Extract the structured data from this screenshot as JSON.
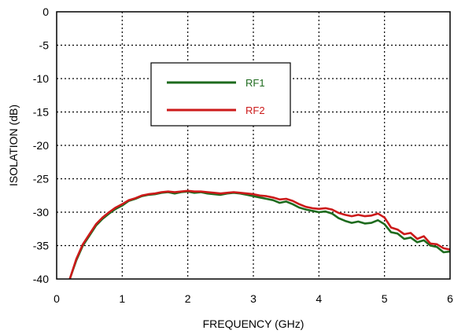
{
  "chart_data": {
    "type": "line",
    "title": "",
    "xlabel": "FREQUENCY (GHz)",
    "ylabel": "ISOLATION (dB)",
    "xlim": [
      0,
      6
    ],
    "ylim": [
      -40,
      0
    ],
    "x_ticks": [
      "0",
      "1",
      "2",
      "3",
      "4",
      "5",
      "6"
    ],
    "y_ticks": [
      "0",
      "-5",
      "-10",
      "-15",
      "-20",
      "-25",
      "-30",
      "-35",
      "-40"
    ],
    "grid": true,
    "grid_style": "dotted",
    "legend_position": "upper-left-center",
    "series": [
      {
        "name": "RF1",
        "color": "#1e6b1e",
        "x": [
          0.2,
          0.3,
          0.4,
          0.5,
          0.6,
          0.7,
          0.8,
          0.9,
          1.0,
          1.1,
          1.2,
          1.3,
          1.4,
          1.5,
          1.6,
          1.7,
          1.8,
          1.9,
          2.0,
          2.1,
          2.2,
          2.3,
          2.4,
          2.5,
          2.6,
          2.7,
          2.8,
          2.9,
          3.0,
          3.1,
          3.2,
          3.3,
          3.4,
          3.5,
          3.6,
          3.7,
          3.8,
          3.9,
          4.0,
          4.1,
          4.2,
          4.3,
          4.4,
          4.5,
          4.6,
          4.7,
          4.8,
          4.9,
          5.0,
          5.1,
          5.2,
          5.3,
          5.4,
          5.5,
          5.6,
          5.7,
          5.8,
          5.9,
          6.0
        ],
        "values": [
          -40.0,
          -37.2,
          -35.0,
          -33.5,
          -32.0,
          -31.0,
          -30.2,
          -29.5,
          -29.0,
          -28.3,
          -28.0,
          -27.6,
          -27.4,
          -27.3,
          -27.1,
          -27.0,
          -27.2,
          -27.0,
          -26.9,
          -27.1,
          -27.0,
          -27.2,
          -27.3,
          -27.4,
          -27.2,
          -27.1,
          -27.2,
          -27.4,
          -27.6,
          -27.8,
          -28.0,
          -28.2,
          -28.6,
          -28.4,
          -28.8,
          -29.3,
          -29.6,
          -29.8,
          -30.0,
          -29.9,
          -30.2,
          -30.9,
          -31.3,
          -31.6,
          -31.4,
          -31.7,
          -31.6,
          -31.2,
          -31.8,
          -33.0,
          -33.2,
          -34.0,
          -33.8,
          -34.5,
          -34.2,
          -35.0,
          -35.2,
          -36.0,
          -35.9
        ]
      },
      {
        "name": "RF2",
        "color": "#cc1a1a",
        "x": [
          0.2,
          0.3,
          0.4,
          0.5,
          0.6,
          0.7,
          0.8,
          0.9,
          1.0,
          1.1,
          1.2,
          1.3,
          1.4,
          1.5,
          1.6,
          1.7,
          1.8,
          1.9,
          2.0,
          2.1,
          2.2,
          2.3,
          2.4,
          2.5,
          2.6,
          2.7,
          2.8,
          2.9,
          3.0,
          3.1,
          3.2,
          3.3,
          3.4,
          3.5,
          3.6,
          3.7,
          3.8,
          3.9,
          4.0,
          4.1,
          4.2,
          4.3,
          4.4,
          4.5,
          4.6,
          4.7,
          4.8,
          4.9,
          5.0,
          5.1,
          5.2,
          5.3,
          5.4,
          5.5,
          5.6,
          5.7,
          5.8,
          5.9,
          6.0
        ],
        "values": [
          -40.0,
          -37.0,
          -34.8,
          -33.3,
          -31.8,
          -30.8,
          -30.0,
          -29.3,
          -28.8,
          -28.2,
          -27.9,
          -27.5,
          -27.3,
          -27.2,
          -27.0,
          -26.9,
          -27.0,
          -26.9,
          -26.8,
          -26.9,
          -26.9,
          -27.0,
          -27.1,
          -27.2,
          -27.1,
          -27.0,
          -27.1,
          -27.2,
          -27.3,
          -27.5,
          -27.6,
          -27.8,
          -28.1,
          -28.0,
          -28.3,
          -28.8,
          -29.2,
          -29.4,
          -29.5,
          -29.4,
          -29.6,
          -30.1,
          -30.4,
          -30.6,
          -30.4,
          -30.6,
          -30.5,
          -30.2,
          -30.8,
          -32.3,
          -32.6,
          -33.3,
          -33.1,
          -34.0,
          -33.6,
          -34.7,
          -34.8,
          -35.4,
          -35.6
        ]
      }
    ]
  }
}
